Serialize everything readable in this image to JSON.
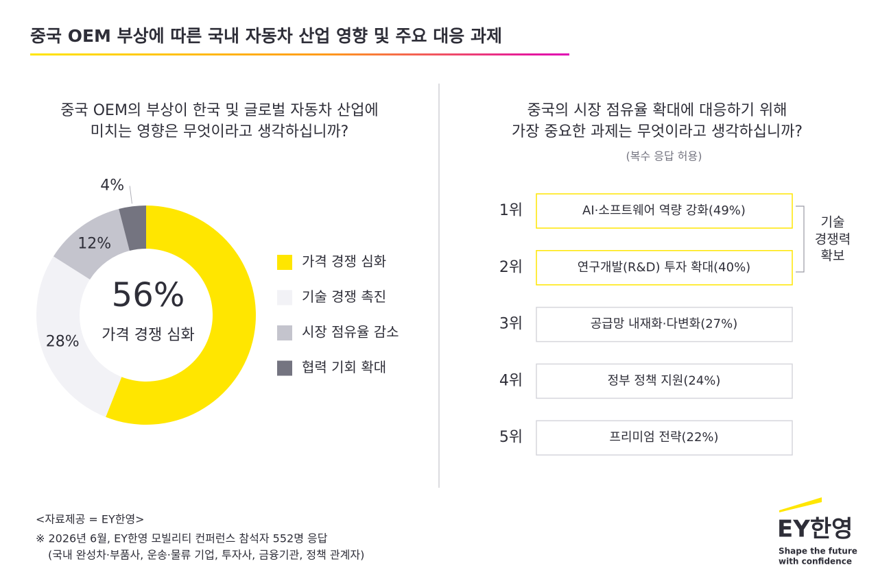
{
  "title": "중국 OEM 부상에 따른 국내 자동차 산업 영향 및 주요 대응 과제",
  "chart_data": {
    "type": "donut",
    "title": [
      "중국 OEM의 부상이 한국 및 글로벌 자동차 산업에",
      "미치는 영향은 무엇이라고 생각하십니까?"
    ],
    "categories": [
      "가격 경쟁 심화",
      "기술 경쟁 촉진",
      "시장 점유율 감소",
      "협력 기회 확대"
    ],
    "values": [
      56,
      28,
      12,
      4
    ],
    "value_labels": [
      "56%",
      "28%",
      "12%",
      "4%"
    ],
    "colors": [
      "#ffe600",
      "#f2f2f6",
      "#c4c4cd",
      "#747480"
    ]
  },
  "ranking": {
    "title": [
      "중국의 시장 점유율 확대에 대응하기 위해",
      "가장 중요한 과제는 무엇이라고 생각하십니까?"
    ],
    "subtitle": "(복수 응답 허용)",
    "items": [
      {
        "rank": "1위",
        "label": "AI·소프트웨어 역량 강화(49%)"
      },
      {
        "rank": "2위",
        "label": "연구개발(R&D) 투자 확대(40%)"
      },
      {
        "rank": "3위",
        "label": "공급망 내재화·다변화(27%)"
      },
      {
        "rank": "4위",
        "label": "정부 정책 지원(24%)"
      },
      {
        "rank": "5위",
        "label": "프리미엄 전략(22%)"
      }
    ],
    "group_label": [
      "기술",
      "경쟁력",
      "확보"
    ]
  },
  "footer": {
    "source": "<자료제공 = EY한영>",
    "note": [
      "※  2026년 6월, EY한영 모빌리티 컨퍼런스 참석자 552명 응답",
      "(국내 완성차·부품사, 운송·물류 기업, 투자사, 금융기관, 정책 관계자)"
    ]
  },
  "logo": {
    "name": "EY한영",
    "tagline": [
      "Shape the future",
      "with confidence"
    ]
  }
}
